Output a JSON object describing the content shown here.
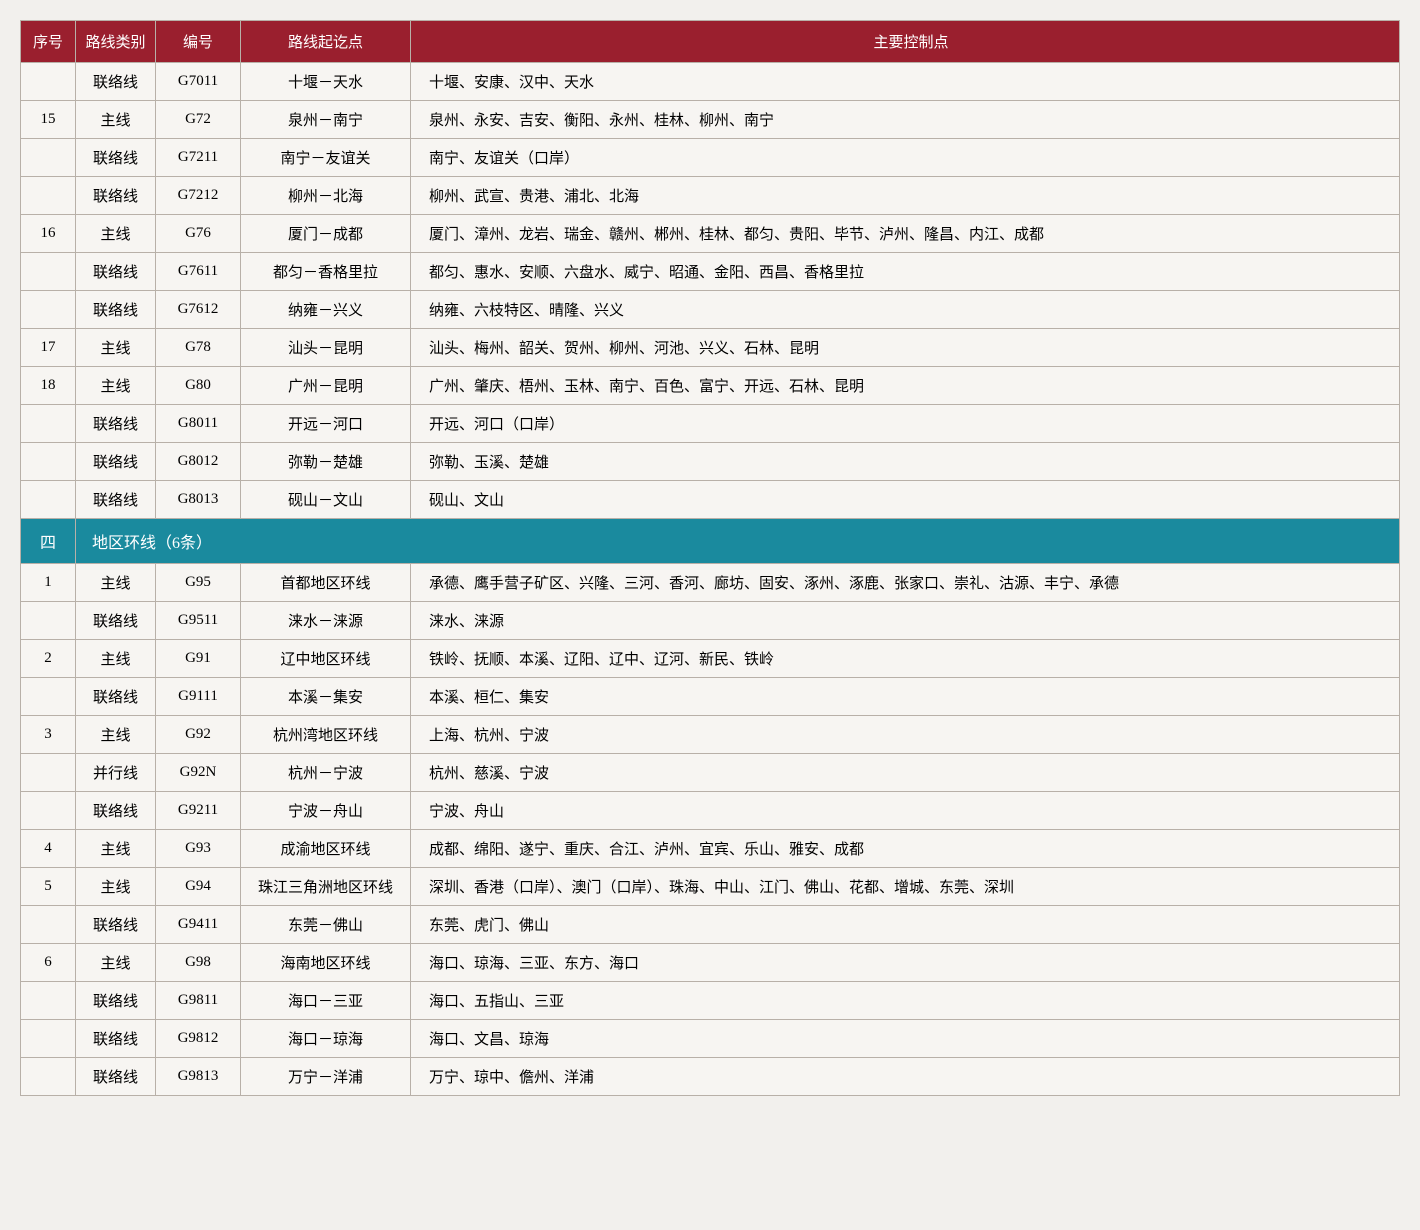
{
  "table": {
    "headers": {
      "seq": "序号",
      "type": "路线类别",
      "code": "编号",
      "route": "路线起讫点",
      "points": "主要控制点"
    },
    "columns": {
      "widths": [
        "55px",
        "80px",
        "85px",
        "170px",
        "auto"
      ],
      "alignments": [
        "center",
        "center",
        "center",
        "center",
        "left"
      ]
    },
    "colors": {
      "header_bg": "#9a1f2e",
      "header_text": "#ffffff",
      "section_bg": "#1a8a9e",
      "section_text": "#ffffff",
      "cell_bg": "#f7f5f2",
      "border": "#b8b0a8",
      "body_bg": "#f2f0ed",
      "text": "#333333"
    },
    "fonts": {
      "family": "SimSun",
      "header_size": 15,
      "cell_size": 15,
      "section_size": 16
    },
    "rows": [
      {
        "seq": "",
        "type": "联络线",
        "code": "G7011",
        "route": "十堰－天水",
        "points": "十堰、安康、汉中、天水"
      },
      {
        "seq": "15",
        "type": "主线",
        "code": "G72",
        "route": "泉州－南宁",
        "points": "泉州、永安、吉安、衡阳、永州、桂林、柳州、南宁"
      },
      {
        "seq": "",
        "type": "联络线",
        "code": "G7211",
        "route": "南宁－友谊关",
        "points": "南宁、友谊关（口岸）"
      },
      {
        "seq": "",
        "type": "联络线",
        "code": "G7212",
        "route": "柳州－北海",
        "points": "柳州、武宣、贵港、浦北、北海"
      },
      {
        "seq": "16",
        "type": "主线",
        "code": "G76",
        "route": "厦门－成都",
        "points": "厦门、漳州、龙岩、瑞金、赣州、郴州、桂林、都匀、贵阳、毕节、泸州、隆昌、内江、成都"
      },
      {
        "seq": "",
        "type": "联络线",
        "code": "G7611",
        "route": "都匀－香格里拉",
        "points": "都匀、惠水、安顺、六盘水、威宁、昭通、金阳、西昌、香格里拉"
      },
      {
        "seq": "",
        "type": "联络线",
        "code": "G7612",
        "route": "纳雍－兴义",
        "points": "纳雍、六枝特区、晴隆、兴义"
      },
      {
        "seq": "17",
        "type": "主线",
        "code": "G78",
        "route": "汕头－昆明",
        "points": "汕头、梅州、韶关、贺州、柳州、河池、兴义、石林、昆明"
      },
      {
        "seq": "18",
        "type": "主线",
        "code": "G80",
        "route": "广州－昆明",
        "points": "广州、肇庆、梧州、玉林、南宁、百色、富宁、开远、石林、昆明"
      },
      {
        "seq": "",
        "type": "联络线",
        "code": "G8011",
        "route": "开远－河口",
        "points": "开远、河口（口岸）"
      },
      {
        "seq": "",
        "type": "联络线",
        "code": "G8012",
        "route": "弥勒－楚雄",
        "points": "弥勒、玉溪、楚雄"
      },
      {
        "seq": "",
        "type": "联络线",
        "code": "G8013",
        "route": "砚山－文山",
        "points": "砚山、文山"
      }
    ],
    "section": {
      "num": "四",
      "title": "地区环线（6条）"
    },
    "rows2": [
      {
        "seq": "1",
        "type": "主线",
        "code": "G95",
        "route": "首都地区环线",
        "points": "承德、鹰手营子矿区、兴隆、三河、香河、廊坊、固安、涿州、涿鹿、张家口、崇礼、沽源、丰宁、承德"
      },
      {
        "seq": "",
        "type": "联络线",
        "code": "G9511",
        "route": "涞水－涞源",
        "points": "涞水、涞源"
      },
      {
        "seq": "2",
        "type": "主线",
        "code": "G91",
        "route": "辽中地区环线",
        "points": "铁岭、抚顺、本溪、辽阳、辽中、辽河、新民、铁岭"
      },
      {
        "seq": "",
        "type": "联络线",
        "code": "G9111",
        "route": "本溪－集安",
        "points": "本溪、桓仁、集安"
      },
      {
        "seq": "3",
        "type": "主线",
        "code": "G92",
        "route": "杭州湾地区环线",
        "points": "上海、杭州、宁波"
      },
      {
        "seq": "",
        "type": "并行线",
        "code": "G92N",
        "route": "杭州－宁波",
        "points": "杭州、慈溪、宁波"
      },
      {
        "seq": "",
        "type": "联络线",
        "code": "G9211",
        "route": "宁波－舟山",
        "points": "宁波、舟山"
      },
      {
        "seq": "4",
        "type": "主线",
        "code": "G93",
        "route": "成渝地区环线",
        "points": "成都、绵阳、遂宁、重庆、合江、泸州、宜宾、乐山、雅安、成都"
      },
      {
        "seq": "5",
        "type": "主线",
        "code": "G94",
        "route": "珠江三角洲地区环线",
        "points": "深圳、香港（口岸）、澳门（口岸）、珠海、中山、江门、佛山、花都、增城、东莞、深圳"
      },
      {
        "seq": "",
        "type": "联络线",
        "code": "G9411",
        "route": "东莞－佛山",
        "points": "东莞、虎门、佛山"
      },
      {
        "seq": "6",
        "type": "主线",
        "code": "G98",
        "route": "海南地区环线",
        "points": "海口、琼海、三亚、东方、海口"
      },
      {
        "seq": "",
        "type": "联络线",
        "code": "G9811",
        "route": "海口－三亚",
        "points": "海口、五指山、三亚"
      },
      {
        "seq": "",
        "type": "联络线",
        "code": "G9812",
        "route": "海口－琼海",
        "points": "海口、文昌、琼海"
      },
      {
        "seq": "",
        "type": "联络线",
        "code": "G9813",
        "route": "万宁－洋浦",
        "points": "万宁、琼中、儋州、洋浦"
      }
    ]
  }
}
